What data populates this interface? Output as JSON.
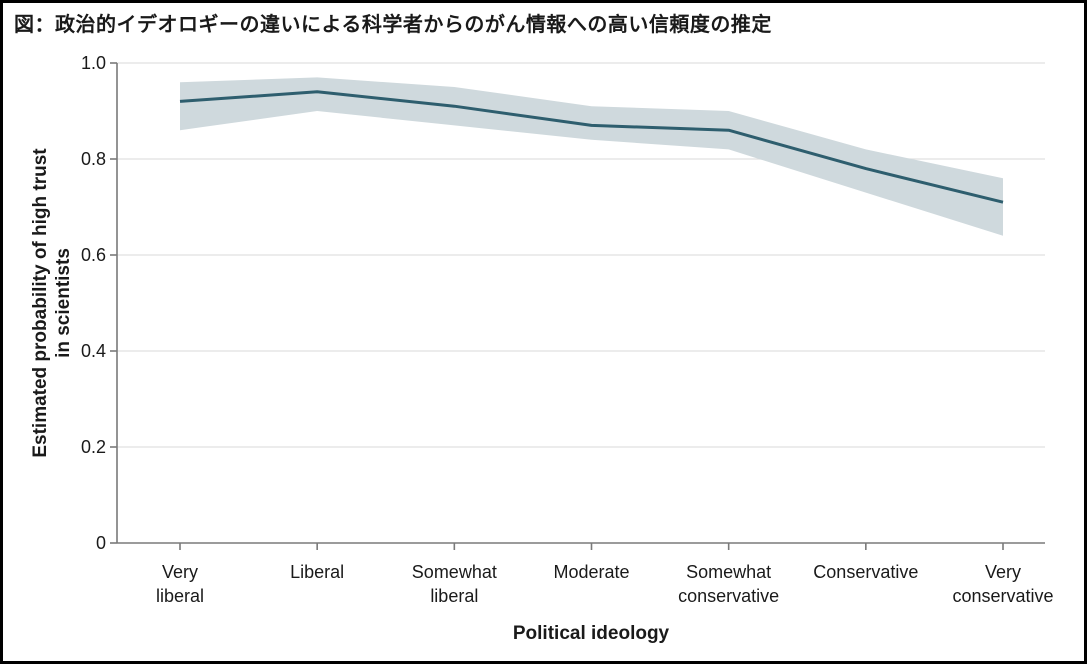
{
  "figure": {
    "title": "図：政治的イデオロギーの違いによる科学者からのがん情報への高い信頼度の推定"
  },
  "chart_data": {
    "type": "line",
    "title": "図：政治的イデオロギーの違いによる科学者からのがん情報への高い信頼度の推定",
    "xlabel": "Political ideology",
    "ylabel": "Estimated probability of high trust in scientists",
    "ylabel_lines": [
      "Estimated probability of high trust",
      "in scientists"
    ],
    "categories": [
      "Very liberal",
      "Liberal",
      "Somewhat liberal",
      "Moderate",
      "Somewhat conservative",
      "Conservative",
      "Very conservative"
    ],
    "categories_display": [
      [
        "Very",
        "liberal"
      ],
      [
        "Liberal"
      ],
      [
        "Somewhat",
        "liberal"
      ],
      [
        "Moderate"
      ],
      [
        "Somewhat",
        "conservative"
      ],
      [
        "Conservative"
      ],
      [
        "Very",
        "conservative"
      ]
    ],
    "series": [
      {
        "name": "Estimated probability of high trust in scientists",
        "values": [
          0.92,
          0.94,
          0.91,
          0.87,
          0.86,
          0.78,
          0.71
        ],
        "ci_lower": [
          0.86,
          0.9,
          0.87,
          0.84,
          0.82,
          0.73,
          0.64
        ],
        "ci_upper": [
          0.96,
          0.97,
          0.95,
          0.91,
          0.9,
          0.82,
          0.76
        ]
      }
    ],
    "ylim": [
      0,
      1.0
    ],
    "yticks": [
      0,
      0.2,
      0.4,
      0.6,
      0.8,
      1.0
    ],
    "ytick_labels": [
      "0",
      "0.2",
      "0.4",
      "0.6",
      "0.8",
      "1.0"
    ],
    "grid": "horizontal",
    "legend": "none",
    "colors": {
      "line": "#2e5e6e",
      "band": "#cfd9dd",
      "grid": "#e0e0e0",
      "axis": "#7a7a7a",
      "text": "#1a1a1a",
      "background": "#ffffff",
      "border": "#000000"
    }
  }
}
